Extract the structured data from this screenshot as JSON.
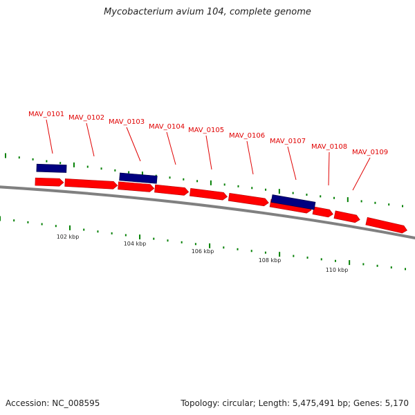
{
  "title": "Mycobacterium avium 104, complete genome",
  "footer": {
    "accession_label": "Accession",
    "accession": "NC_008595",
    "topology_label": "Topology",
    "topology": "circular",
    "length_label": "Length",
    "length": "5,475,491 bp",
    "genes_label": "Genes",
    "genes": "5,170"
  },
  "colors": {
    "gene_forward": "#ff0000",
    "gene_reverse": "#000080",
    "backbone": "#808080",
    "gc_ticks": "#007f00",
    "label": "#e00000"
  },
  "scale_labels": [
    "102 kbp",
    "104 kbp",
    "106 kbp",
    "108 kbp",
    "110 kbp"
  ],
  "gene_labels": [
    "MAV_0101",
    "MAV_0102",
    "MAV_0103",
    "MAV_0104",
    "MAV_0105",
    "MAV_0106",
    "MAV_0107",
    "MAV_0108",
    "MAV_0109"
  ]
}
